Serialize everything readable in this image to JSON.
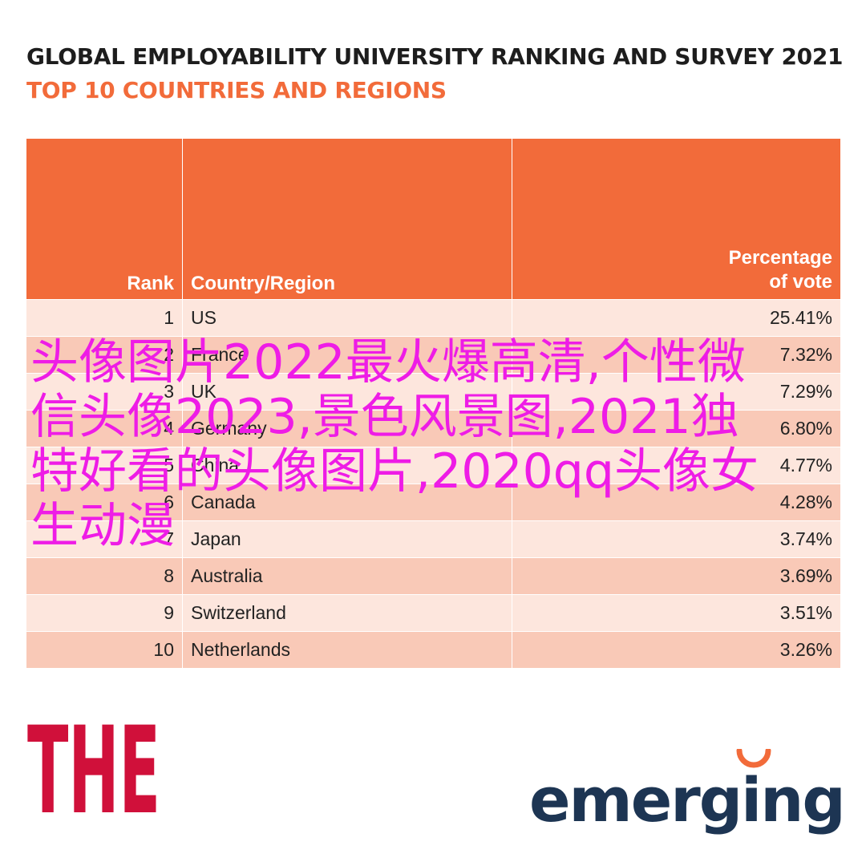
{
  "chart_data": {
    "type": "table",
    "title": "GLOBAL EMPLOYABILITY UNIVERSITY RANKING AND SURVEY 2021",
    "subtitle": "TOP 10 COUNTRIES AND REGIONS",
    "columns": [
      "Rank",
      "Country/Region",
      "Percentage of vote"
    ],
    "rows": [
      {
        "rank": "1",
        "country": "US",
        "vote": "25.41%"
      },
      {
        "rank": "2",
        "country": "France",
        "vote": "7.32%"
      },
      {
        "rank": "3",
        "country": "UK",
        "vote": "7.29%"
      },
      {
        "rank": "4",
        "country": "Germany",
        "vote": "6.80%"
      },
      {
        "rank": "5",
        "country": "China",
        "vote": "4.77%"
      },
      {
        "rank": "6",
        "country": "Canada",
        "vote": "4.28%"
      },
      {
        "rank": "7",
        "country": "Japan",
        "vote": "3.74%"
      },
      {
        "rank": "8",
        "country": "Australia",
        "vote": "3.69%"
      },
      {
        "rank": "9",
        "country": "Switzerland",
        "vote": "3.51%"
      },
      {
        "rank": "10",
        "country": "Netherlands",
        "vote": "3.26%"
      }
    ]
  },
  "header": {
    "rank": "Rank",
    "country": "Country/Region",
    "vote_line1": "Percentage",
    "vote_line2": "of vote"
  },
  "logos": {
    "the": "THE",
    "emerging": "emerging"
  },
  "overlay_text": "头像图片2022最火爆高清,个性微信头像2023,景色风景图,2021独特好看的头像图片,2020qq头像女生动漫",
  "colors": {
    "accent": "#f26b3a",
    "row_light": "#fde6dd",
    "row_dark": "#f9c9b7",
    "overlay": "#ee1ce6",
    "the_red": "#d0103a",
    "emerging_navy": "#1d3553"
  }
}
